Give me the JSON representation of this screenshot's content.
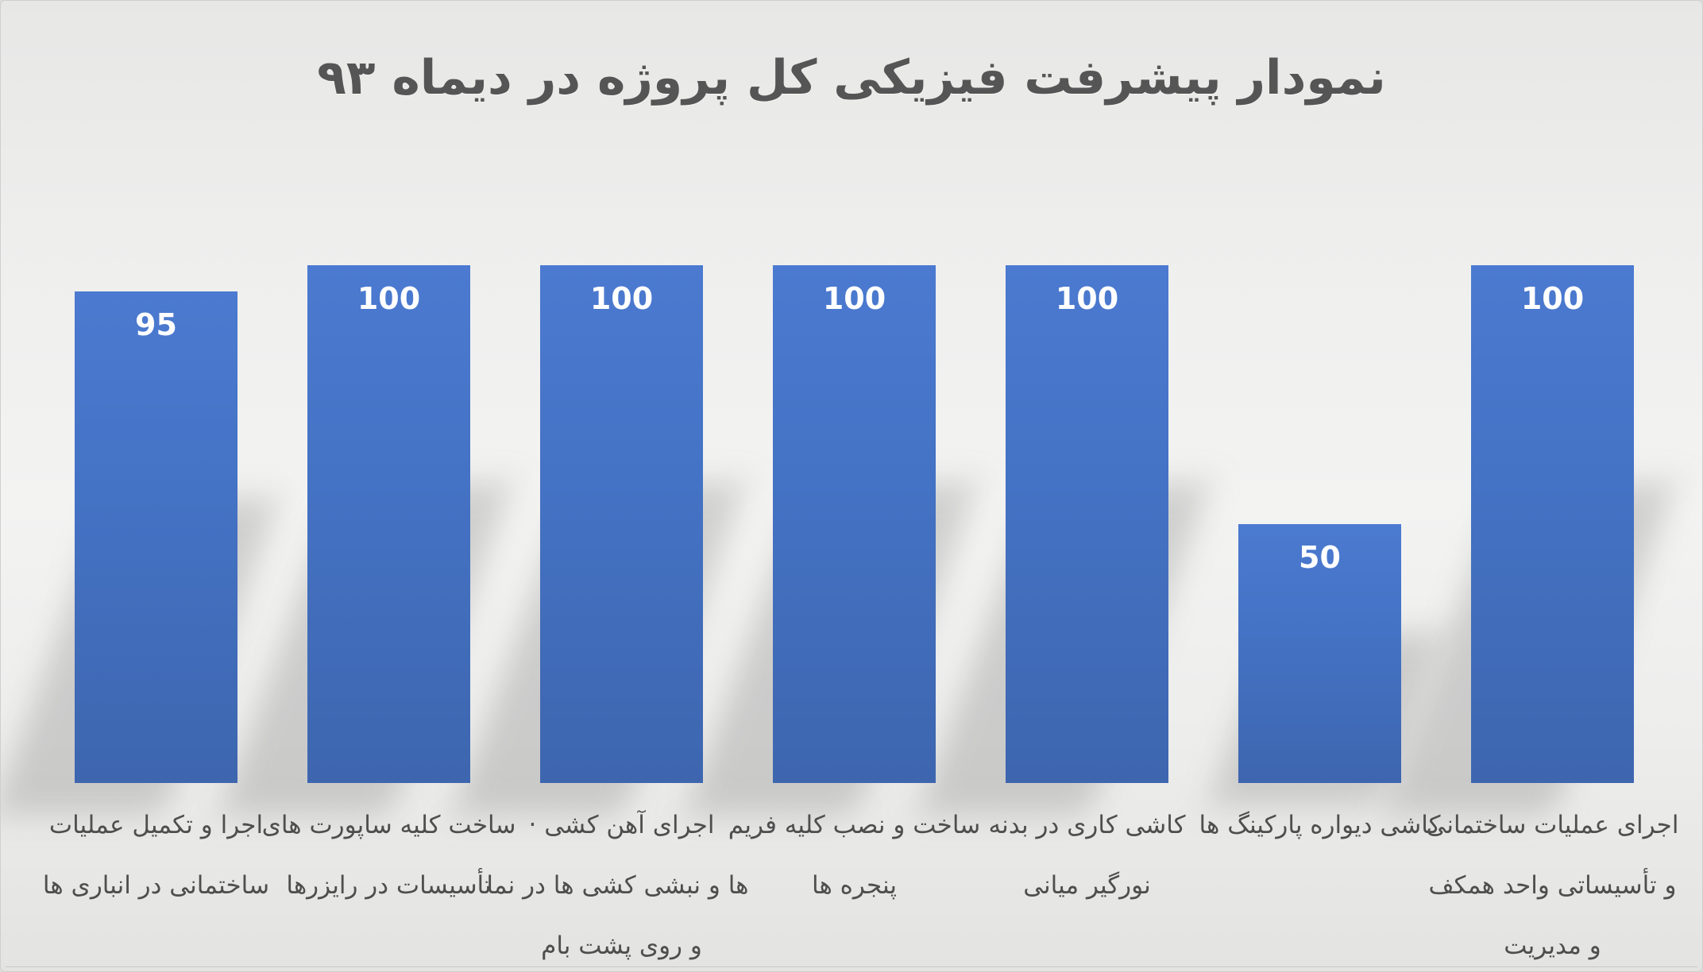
{
  "title": "نمودار پیشرفت فیزیکی کل پروژه در دیماه ۹۳",
  "colors": {
    "bar_top": "#4b7ad0",
    "bar_mid": "#4472c4",
    "bar_bottom": "#3e66af",
    "value_label": "#ffffff",
    "title_text": "#555555",
    "category_text": "#4e4e4e",
    "background_light": "#f3f3f2",
    "background_dark": "#e3e3e1",
    "shadow": "rgba(104,104,104,0.26)"
  },
  "chart_data": {
    "type": "bar",
    "title": "نمودار پیشرفت فیزیکی کل پروژه در دیماه ۹۳",
    "xlabel": "",
    "ylabel": "",
    "ylim": [
      0,
      100
    ],
    "grid": false,
    "legend": "none",
    "direction": "rtl",
    "value_label_position": "inside-top",
    "values": [
      95,
      100,
      100,
      100,
      100,
      50,
      100
    ],
    "categories": [
      "اجرا و تکمیل عملیات ساختمانی در انباری ها",
      "ساخت کلیه ساپورت های تأسیسات در رایزرها",
      "اجرای آهن کشی · ها و نبشی کشی ها در نما و روی پشت بام",
      "ساخت و نصب کلیه فریم پنجره ها",
      "کاشی کاری در بدنه نورگیر میانی",
      "کاشی دیواره پارکینگ ها",
      "اجرای عملیات ساختمانی و تأسیساتی واحد همکف و مدیریت"
    ],
    "categories_lines": [
      [
        "اجرا و تکمیل عملیات",
        "ساختمانی در انباری ها"
      ],
      [
        "ساخت کلیه ساپورت های",
        "تأسیسات در رایزرها"
      ],
      [
        "اجرای آهن کشی ·",
        "ها و نبشی کشی ها در نما",
        "و روی پشت بام"
      ],
      [
        "ساخت و نصب کلیه فریم",
        "پنجره ها"
      ],
      [
        "کاشی کاری در بدنه",
        "نورگیر میانی"
      ],
      [
        "کاشی دیواره پارکینگ ها"
      ],
      [
        "اجرای عملیات ساختمانی",
        "و تأسیساتی واحد همکف",
        "و مدیریت"
      ]
    ]
  }
}
